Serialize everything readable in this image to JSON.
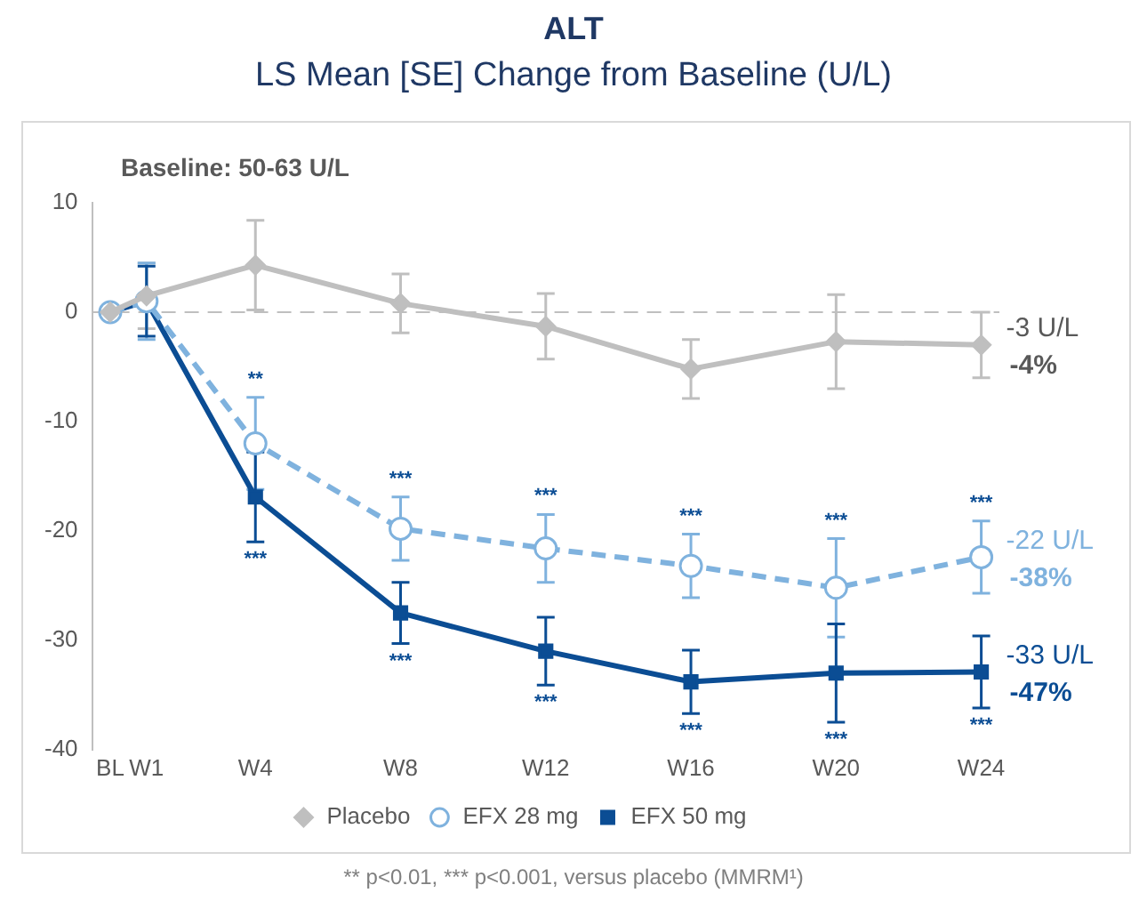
{
  "chart_data": {
    "type": "line",
    "title": "ALT",
    "subtitle": "LS Mean [SE] Change from Baseline (U/L)",
    "categories": [
      "BL",
      "W1",
      null,
      null,
      "W4",
      null,
      null,
      null,
      "W8",
      null,
      null,
      null,
      "W12",
      null,
      null,
      null,
      "W16",
      null,
      null,
      null,
      "W20",
      null,
      null,
      null,
      "W24"
    ],
    "ylim": [
      -40,
      10
    ],
    "yticks": [
      -40,
      -30,
      -20,
      -10,
      0,
      10
    ],
    "series": [
      {
        "name": "Placebo",
        "color": "#bfbfbf",
        "marker": "diamond",
        "line_style": "solid",
        "values": [
          0,
          1.5,
          null,
          null,
          4.3,
          null,
          null,
          null,
          0.8,
          null,
          null,
          null,
          -1.3,
          null,
          null,
          null,
          -5.2,
          null,
          null,
          null,
          -2.7,
          null,
          null,
          null,
          -3
        ],
        "errors": [
          null,
          3,
          null,
          null,
          4.1,
          null,
          null,
          null,
          2.7,
          null,
          null,
          null,
          3,
          null,
          null,
          null,
          2.7,
          null,
          null,
          null,
          4.3,
          null,
          null,
          null,
          3
        ]
      },
      {
        "name": "EFX 28 mg",
        "color": "#7fb2de",
        "marker": "circle",
        "line_style": "dashed",
        "values": [
          0,
          1,
          null,
          null,
          -12,
          null,
          null,
          null,
          -19.8,
          null,
          null,
          null,
          -21.6,
          null,
          null,
          null,
          -23.2,
          null,
          null,
          null,
          -25.2,
          null,
          null,
          null,
          -22.4
        ],
        "errors": [
          null,
          3.5,
          null,
          null,
          4.2,
          null,
          null,
          null,
          2.9,
          null,
          null,
          null,
          3.1,
          null,
          null,
          null,
          2.9,
          null,
          null,
          null,
          4.5,
          null,
          null,
          null,
          3.3
        ]
      },
      {
        "name": "EFX 50 mg",
        "color": "#0b4d94",
        "marker": "square",
        "line_style": "solid",
        "values": [
          0,
          1,
          null,
          null,
          -16.9,
          null,
          null,
          null,
          -27.5,
          null,
          null,
          null,
          -31,
          null,
          null,
          null,
          -33.8,
          null,
          null,
          null,
          -33,
          null,
          null,
          null,
          -32.9
        ],
        "errors": [
          null,
          3.2,
          null,
          null,
          4.1,
          null,
          null,
          null,
          2.8,
          null,
          null,
          null,
          3.1,
          null,
          null,
          null,
          2.9,
          null,
          null,
          null,
          4.5,
          null,
          null,
          null,
          3.3
        ]
      }
    ],
    "ref_lines": [
      {
        "axis": "y",
        "value": 0,
        "color": "#bfbfbf",
        "line_style": "dashed"
      }
    ],
    "annotations": [
      "Baseline: 50-63 U/L",
      {
        "text": "**",
        "x": "W4",
        "y": -12
      },
      {
        "text": "***",
        "x": "W8",
        "y": -19.8
      },
      {
        "text": "***",
        "x": "W12",
        "y": -21.6
      },
      {
        "text": "***",
        "x": "W16",
        "y": -23.2
      },
      {
        "text": "***",
        "x": "W20",
        "y": -25.2
      },
      {
        "text": "***",
        "x": "W24",
        "y": -22.4
      },
      {
        "text": "***",
        "x": "W4",
        "y": -16.9
      },
      {
        "text": "***",
        "x": "W8",
        "y": -27.5
      },
      {
        "text": "***",
        "x": "W12",
        "y": -31
      },
      {
        "text": "***",
        "x": "W16",
        "y": -33.8
      },
      {
        "text": "***",
        "x": "W20",
        "y": -33
      },
      {
        "text": "***",
        "x": "W24",
        "y": -32.9
      },
      {
        "text": "-3 U/L",
        "x": "W24",
        "y": -3
      },
      {
        "text": "-4%",
        "x": "W24",
        "y": -3
      },
      {
        "text": "-22 U/L",
        "x": "W24",
        "y": -22.4
      },
      {
        "text": "-38%",
        "x": "W24",
        "y": -22.4
      },
      {
        "text": "-33 U/L",
        "x": "W24",
        "y": -32.9
      },
      {
        "text": "-47%",
        "x": "W24",
        "y": -32.9
      },
      "** p<0.01, *** p<0.001, versus placebo (MMRM¹)"
    ],
    "grid": false,
    "legend": "bottom"
  }
}
